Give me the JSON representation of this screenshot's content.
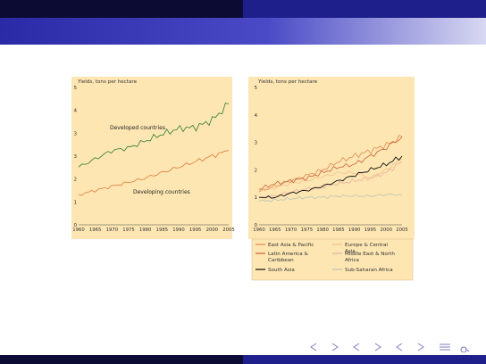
{
  "slide": {
    "nav_icons": [
      "frame-back-icon",
      "frame-forward-icon",
      "subsection-back-icon",
      "subsection-forward-icon",
      "section-back-icon",
      "section-forward-icon",
      "align-icon",
      "search-icon"
    ]
  },
  "colors": {
    "panel": "#fde6b2",
    "developed": "#2f7a2f",
    "developing": "#e07a3c",
    "east_asia_pacific": "#e08a4e",
    "europe_central_asia": "#f0c08a",
    "latin_america_caribbean": "#c8603a",
    "middle_east_north_africa": "#e8b0a0",
    "south_asia": "#111111",
    "sub_saharan_africa": "#b8c4b4"
  },
  "chart_data": [
    {
      "type": "line",
      "ylabel": "Yields, tons per hectare",
      "ylim": [
        0,
        5
      ],
      "yticks": [
        "0",
        "1",
        "2",
        "3",
        "3",
        "4",
        "5"
      ],
      "x": [
        1960,
        1965,
        1970,
        1975,
        1980,
        1985,
        1990,
        1995,
        2000,
        2005
      ],
      "xtick_labels": [
        "1960",
        "1965",
        "1970",
        "1975",
        "1980",
        "1985",
        "1990",
        "1995",
        "2000",
        "2005"
      ],
      "annotations": [
        "Developed countries",
        "Developing countries"
      ],
      "series": [
        {
          "key": "developed",
          "values": [
            2.1,
            2.4,
            2.7,
            2.8,
            3.05,
            3.3,
            3.5,
            3.55,
            3.8,
            4.4
          ]
        },
        {
          "key": "developing",
          "values": [
            1.1,
            1.25,
            1.4,
            1.55,
            1.7,
            1.9,
            2.1,
            2.3,
            2.5,
            2.7
          ]
        }
      ]
    },
    {
      "type": "line",
      "ylabel": "Yields, tons per hectare",
      "ylim": [
        0,
        5
      ],
      "yticks": [
        "0",
        "1",
        "2",
        "3",
        "4",
        "5"
      ],
      "x": [
        1960,
        1965,
        1970,
        1975,
        1980,
        1985,
        1990,
        1995,
        2000,
        2005
      ],
      "xtick_labels": [
        "1960",
        "1965",
        "1970",
        "1975",
        "1980",
        "1985",
        "1990",
        "1995",
        "2000",
        "2005"
      ],
      "legend_position": "bottom",
      "series": [
        {
          "name": "East Asia & Pacific",
          "key": "east_asia_pacific",
          "values": [
            1.2,
            1.4,
            1.6,
            1.8,
            2.0,
            2.3,
            2.5,
            2.7,
            2.9,
            3.2
          ]
        },
        {
          "name": "Europe & Central Asia",
          "key": "europe_central_asia",
          "values": [
            1.3,
            1.35,
            1.5,
            1.6,
            1.75,
            1.9,
            1.9,
            1.7,
            2.0,
            2.4
          ]
        },
        {
          "name": "Latin America & Caribbean",
          "key": "latin_america_caribbean",
          "values": [
            1.3,
            1.5,
            1.6,
            1.7,
            1.9,
            2.1,
            2.2,
            2.5,
            2.8,
            3.2
          ]
        },
        {
          "name": "Middle East & North Africa",
          "key": "middle_east_north_africa",
          "values": [
            1.0,
            1.05,
            1.2,
            1.3,
            1.4,
            1.5,
            1.6,
            1.7,
            1.9,
            2.3
          ]
        },
        {
          "name": "South Asia",
          "key": "south_asia",
          "values": [
            1.0,
            1.0,
            1.15,
            1.25,
            1.4,
            1.6,
            1.8,
            2.0,
            2.2,
            2.5
          ]
        },
        {
          "name": "Sub-Saharan Africa",
          "key": "sub_saharan_africa",
          "values": [
            0.85,
            0.9,
            0.95,
            1.0,
            1.0,
            1.05,
            1.05,
            1.05,
            1.1,
            1.1
          ]
        }
      ]
    }
  ]
}
